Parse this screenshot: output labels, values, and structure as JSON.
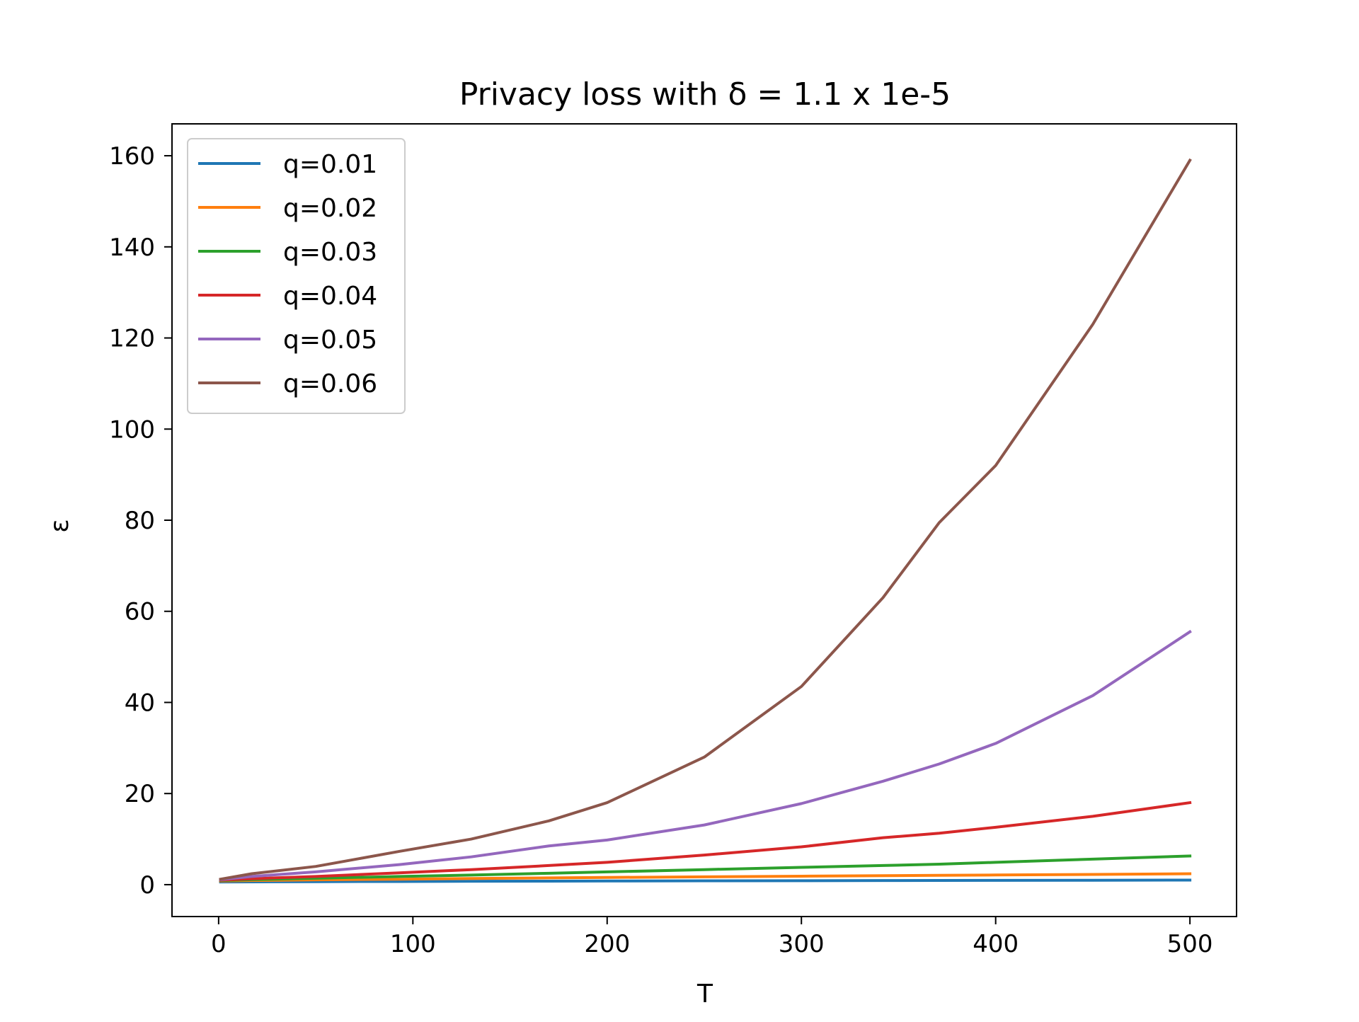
{
  "chart_data": {
    "type": "line",
    "title": "Privacy loss with δ = 1.1 x 1e-5",
    "xlabel": "T",
    "ylabel": "ε",
    "xlim": [
      -24,
      524
    ],
    "ylim": [
      -7,
      167
    ],
    "xticks": [
      0,
      100,
      200,
      300,
      400,
      500
    ],
    "yticks": [
      0,
      20,
      40,
      60,
      80,
      100,
      120,
      140,
      160
    ],
    "xtick_labels": [
      "0",
      "100",
      "200",
      "300",
      "400",
      "500"
    ],
    "ytick_labels": [
      "0",
      "20",
      "40",
      "60",
      "80",
      "100",
      "120",
      "140",
      "160"
    ],
    "grid": false,
    "legend_position": "top-left",
    "x": [
      1,
      17,
      50,
      93,
      130,
      170,
      200,
      250,
      300,
      342,
      371,
      400,
      450,
      500
    ],
    "series": [
      {
        "name": "q=0.01",
        "color": "#1f77b4",
        "values": [
          0.6,
          0.62,
          0.66,
          0.7,
          0.74,
          0.77,
          0.8,
          0.84,
          0.87,
          0.9,
          0.92,
          0.94,
          0.97,
          1.0
        ]
      },
      {
        "name": "q=0.02",
        "color": "#ff7f0e",
        "values": [
          0.8,
          0.9,
          1.05,
          1.2,
          1.35,
          1.48,
          1.58,
          1.72,
          1.86,
          1.98,
          2.05,
          2.12,
          2.25,
          2.4
        ]
      },
      {
        "name": "q=0.03",
        "color": "#2ca02c",
        "values": [
          0.9,
          1.1,
          1.4,
          1.8,
          2.1,
          2.5,
          2.8,
          3.3,
          3.8,
          4.2,
          4.5,
          4.9,
          5.6,
          6.3
        ]
      },
      {
        "name": "q=0.04",
        "color": "#d62728",
        "values": [
          1.0,
          1.3,
          1.8,
          2.6,
          3.3,
          4.2,
          4.9,
          6.5,
          8.3,
          10.3,
          11.3,
          12.6,
          15.0,
          18.0
        ]
      },
      {
        "name": "q=0.05",
        "color": "#9467bd",
        "values": [
          1.1,
          1.8,
          2.8,
          4.4,
          6.1,
          8.5,
          9.8,
          13.1,
          17.8,
          22.7,
          26.5,
          31.0,
          41.5,
          55.5
        ]
      },
      {
        "name": "q=0.06",
        "color": "#8c564b",
        "values": [
          1.2,
          2.4,
          4.0,
          7.3,
          10.0,
          14.0,
          18.0,
          28.0,
          43.5,
          63.0,
          79.5,
          92.0,
          123.0,
          159.0
        ]
      }
    ]
  }
}
